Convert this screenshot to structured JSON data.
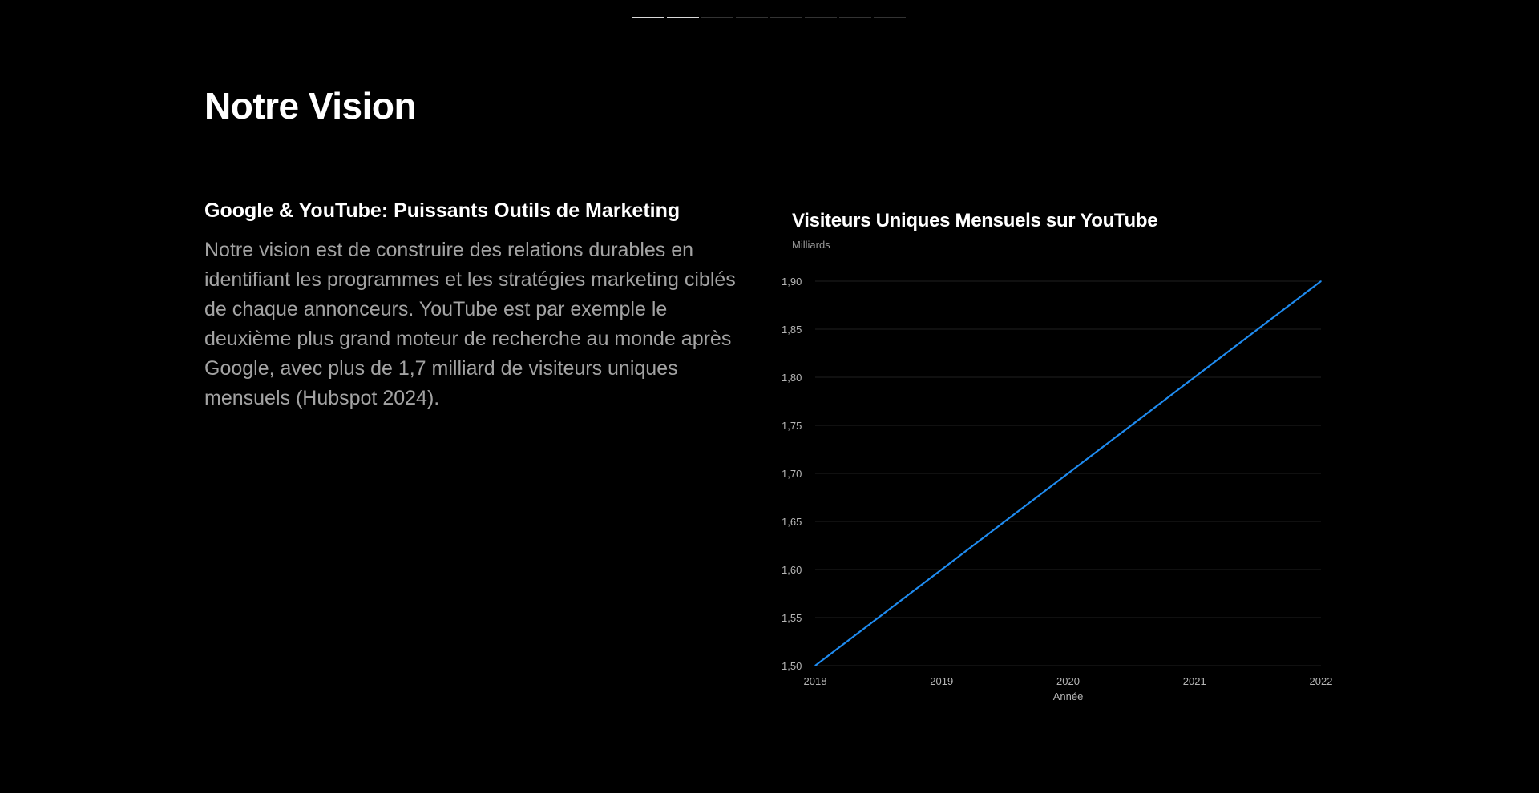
{
  "progress": {
    "total": 8,
    "active_count": 2
  },
  "page": {
    "title": "Notre Vision"
  },
  "section": {
    "heading": "Google & YouTube: Puissants Outils de Marketing",
    "body": "Notre vision est de construire des relations durables en identifiant les programmes et les stratégies marketing ciblés de chaque annonceurs. YouTube est par exemple le deuxième plus grand moteur de recherche au monde après Google, avec plus de 1,7 milliard de visiteurs uniques mensuels (Hubspot 2024)."
  },
  "colors": {
    "line": "#1f8bef",
    "grid": "#1f1f1f",
    "tick": "#b5b5b5"
  },
  "chart_data": {
    "type": "line",
    "title": "Visiteurs Uniques Mensuels sur YouTube",
    "ylabel": "Milliards",
    "xlabel": "Année",
    "x": [
      2018,
      2019,
      2020,
      2021,
      2022
    ],
    "series": [
      {
        "values": [
          1.5,
          1.6,
          1.7,
          1.8,
          1.9
        ]
      }
    ],
    "xticks": [
      "2018",
      "2019",
      "2020",
      "2021",
      "2022"
    ],
    "yticks": [
      "1,50",
      "1,55",
      "1,60",
      "1,65",
      "1,70",
      "1,75",
      "1,80",
      "1,85",
      "1,90"
    ],
    "ylim": [
      1.5,
      1.9
    ],
    "xlim": [
      2018,
      2022
    ],
    "grid": true,
    "legend": "none"
  }
}
